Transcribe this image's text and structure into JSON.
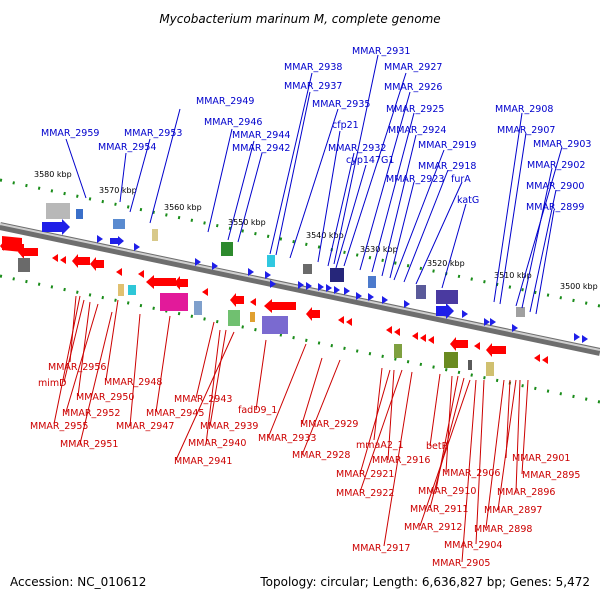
{
  "title": "Mycobacterium marinum M, complete genome",
  "footer": {
    "accession": "Accession: NC_010612",
    "topology": "Topology: circular; Length: 6,636,827 bp; Genes: 5,472"
  },
  "colors": {
    "forward_gene": "#1f1fe8",
    "reverse_gene": "#ff0000",
    "backbone": "#9a9a9a",
    "tick": "#1a8c1a",
    "top_label": "#0000cc",
    "bottom_label": "#cc0000"
  },
  "kbp_labels": [
    "3580 kbp",
    "3570 kbp",
    "3560 kbp",
    "3550 kbp",
    "3540 kbp",
    "3530 kbp",
    "3520 kbp",
    "3510 kbp",
    "3500 kbp"
  ],
  "top_labels": [
    "MMAR_2959",
    "MMAR_2954",
    "MMAR_2953",
    "MMAR_2949",
    "MMAR_2946",
    "MMAR_2944",
    "MMAR_2942",
    "MMAR_2938",
    "MMAR_2937",
    "MMAR_2935",
    "cfp21",
    "MMAR_2932",
    "cyp147G1",
    "MMAR_2931",
    "MMAR_2927",
    "MMAR_2926",
    "MMAR_2925",
    "MMAR_2924",
    "MMAR_2919",
    "MMAR_2918",
    "furA",
    "MMAR_2923",
    "katG",
    "MMAR_2908",
    "MMAR_2907",
    "MMAR_2903",
    "MMAR_2902",
    "MMAR_2900",
    "MMAR_2899"
  ],
  "bottom_labels": [
    "MMAR_2956",
    "mimD",
    "MMAR_2948",
    "MMAR_2950",
    "MMAR_2952",
    "MMAR_2955",
    "MMAR_2951",
    "MMAR_2947",
    "MMAR_2945",
    "MMAR_2943",
    "MMAR_2939",
    "MMAR_2940",
    "MMAR_2941",
    "fadD9_1",
    "MMAR_2933",
    "MMAR_2929",
    "MMAR_2928",
    "mmaA2_1",
    "MMAR_2916",
    "MMAR_2921",
    "MMAR_2922",
    "MMAR_2917",
    "betP",
    "MMAR_2906",
    "MMAR_2910",
    "MMAR_2911",
    "MMAR_2912",
    "MMAR_2904",
    "MMAR_2905",
    "MMAR_2901",
    "MMAR_2895",
    "MMAR_2896",
    "MMAR_2897",
    "MMAR_2898"
  ]
}
